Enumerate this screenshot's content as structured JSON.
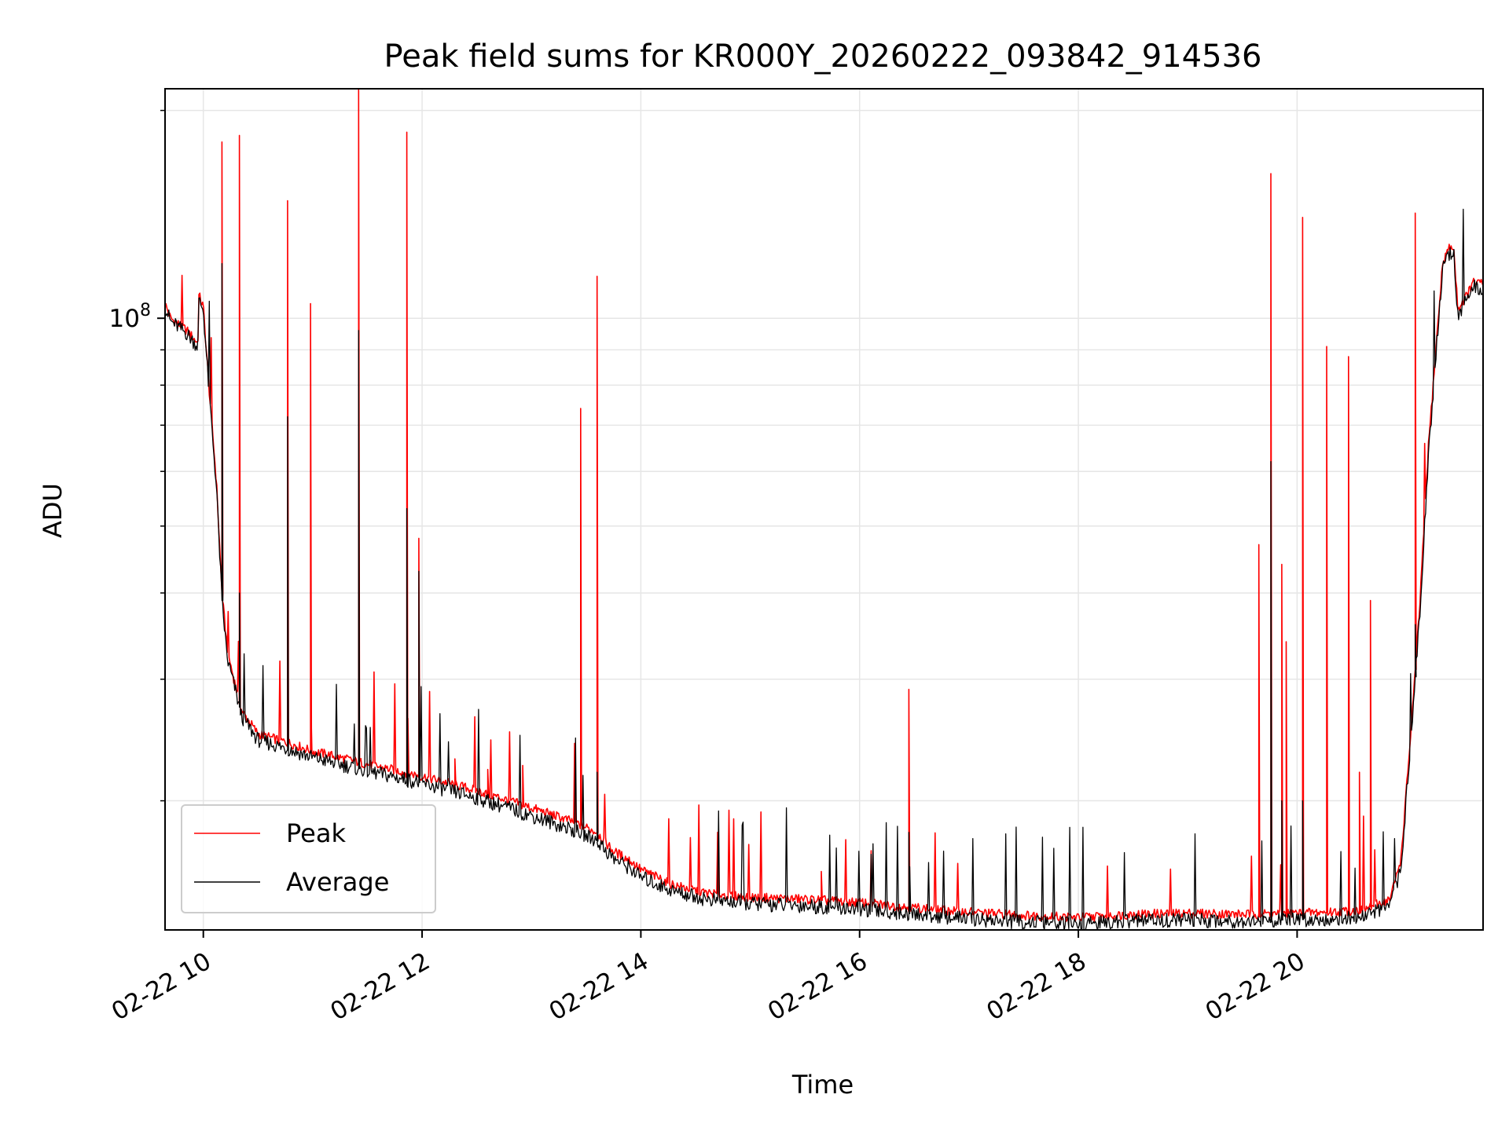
{
  "chart_data": {
    "type": "line",
    "title": "Peak field sums for KR000Y_20260222_093842_914536",
    "xlabel": "Time",
    "ylabel": "ADU",
    "x_unit": "hours",
    "xlim": [
      9.65,
      21.7
    ],
    "ylim": [
      13000000,
      215000000
    ],
    "yscale": "log",
    "x_ticks": [
      {
        "value": 10,
        "label": "02-22 10"
      },
      {
        "value": 12,
        "label": "02-22 12"
      },
      {
        "value": 14,
        "label": "02-22 14"
      },
      {
        "value": 16,
        "label": "02-22 16"
      },
      {
        "value": 18,
        "label": "02-22 18"
      },
      {
        "value": 20,
        "label": "02-22 20"
      }
    ],
    "y_major_ticks": [
      {
        "value": 100000000,
        "base": "10",
        "exp": "8"
      }
    ],
    "y_minor_ticks": [
      20000000,
      30000000,
      40000000,
      50000000,
      60000000,
      70000000,
      80000000,
      90000000,
      200000000
    ],
    "grid": true,
    "legend_position": "lower-left",
    "series": [
      {
        "name": "Peak",
        "color": "#ff0000",
        "baseline": [
          [
            9.65,
            105000000
          ],
          [
            9.7,
            100000000
          ],
          [
            9.85,
            96000000
          ],
          [
            9.95,
            92000000
          ],
          [
            9.96,
            108000000
          ],
          [
            10.0,
            104000000
          ],
          [
            10.05,
            80000000
          ],
          [
            10.12,
            58000000
          ],
          [
            10.17,
            40000000
          ],
          [
            10.22,
            33000000
          ],
          [
            10.28,
            30000000
          ],
          [
            10.35,
            27000000
          ],
          [
            10.5,
            25000000
          ],
          [
            10.8,
            24200000
          ],
          [
            11.0,
            23600000
          ],
          [
            11.3,
            23000000
          ],
          [
            11.6,
            22400000
          ],
          [
            11.9,
            21900000
          ],
          [
            12.2,
            21300000
          ],
          [
            12.5,
            20700000
          ],
          [
            12.8,
            20000000
          ],
          [
            13.1,
            19300000
          ],
          [
            13.4,
            18600000
          ],
          [
            13.6,
            18000000
          ],
          [
            13.75,
            16900000
          ],
          [
            13.9,
            16400000
          ],
          [
            14.0,
            15900000
          ],
          [
            14.3,
            15100000
          ],
          [
            14.6,
            14700000
          ],
          [
            15.0,
            14500000
          ],
          [
            15.5,
            14400000
          ],
          [
            16.0,
            14250000
          ],
          [
            16.5,
            14000000
          ],
          [
            17.0,
            13800000
          ],
          [
            17.5,
            13650000
          ],
          [
            18.0,
            13550000
          ],
          [
            18.5,
            13700000
          ],
          [
            19.0,
            13750000
          ],
          [
            19.5,
            13700000
          ],
          [
            20.0,
            13750000
          ],
          [
            20.3,
            13800000
          ],
          [
            20.6,
            13900000
          ],
          [
            20.85,
            14400000
          ],
          [
            20.95,
            16500000
          ],
          [
            21.03,
            24000000
          ],
          [
            21.12,
            38000000
          ],
          [
            21.2,
            65000000
          ],
          [
            21.28,
            95000000
          ],
          [
            21.33,
            120000000
          ],
          [
            21.38,
            126000000
          ],
          [
            21.43,
            127000000
          ],
          [
            21.47,
            103000000
          ],
          [
            21.55,
            108000000
          ],
          [
            21.62,
            113000000
          ],
          [
            21.7,
            112000000
          ]
        ],
        "spikes": [
          [
            10.17,
            180000000
          ],
          [
            10.33,
            184000000
          ],
          [
            10.77,
            148000000
          ],
          [
            10.98,
            105000000
          ],
          [
            11.42,
            215000000
          ],
          [
            11.86,
            186000000
          ],
          [
            11.97,
            48000000
          ],
          [
            12.3,
            23000000
          ],
          [
            12.6,
            22200000
          ],
          [
            12.92,
            22500000
          ],
          [
            13.45,
            74000000
          ],
          [
            13.6,
            115000000
          ],
          [
            15.65,
            15800000
          ],
          [
            16.45,
            29000000
          ],
          [
            19.65,
            47000000
          ],
          [
            19.76,
            162000000
          ],
          [
            19.86,
            44000000
          ],
          [
            19.9,
            34000000
          ],
          [
            20.05,
            140000000
          ],
          [
            20.27,
            91000000
          ],
          [
            20.47,
            88000000
          ],
          [
            20.57,
            22000000
          ],
          [
            20.67,
            39000000
          ],
          [
            21.08,
            142000000
          ]
        ]
      },
      {
        "name": "Average",
        "color": "#000000",
        "baseline": [
          [
            9.65,
            104000000
          ],
          [
            9.7,
            99000000
          ],
          [
            9.85,
            95000000
          ],
          [
            9.95,
            91000000
          ],
          [
            9.96,
            106000000
          ],
          [
            10.0,
            103000000
          ],
          [
            10.05,
            79000000
          ],
          [
            10.12,
            57000000
          ],
          [
            10.17,
            39000000
          ],
          [
            10.22,
            32000000
          ],
          [
            10.28,
            29500000
          ],
          [
            10.35,
            26500000
          ],
          [
            10.5,
            24500000
          ],
          [
            10.8,
            23700000
          ],
          [
            11.0,
            23100000
          ],
          [
            11.3,
            22500000
          ],
          [
            11.6,
            21900000
          ],
          [
            11.9,
            21400000
          ],
          [
            12.2,
            20800000
          ],
          [
            12.5,
            20200000
          ],
          [
            12.8,
            19500000
          ],
          [
            13.1,
            18800000
          ],
          [
            13.4,
            18100000
          ],
          [
            13.6,
            17500000
          ],
          [
            13.75,
            16500000
          ],
          [
            13.9,
            16000000
          ],
          [
            14.0,
            15500000
          ],
          [
            14.3,
            14800000
          ],
          [
            14.6,
            14400000
          ],
          [
            15.0,
            14200000
          ],
          [
            15.5,
            14100000
          ],
          [
            16.0,
            13950000
          ],
          [
            16.5,
            13700000
          ],
          [
            17.0,
            13500000
          ],
          [
            17.5,
            13350000
          ],
          [
            18.0,
            13250000
          ],
          [
            18.5,
            13400000
          ],
          [
            19.0,
            13450000
          ],
          [
            19.5,
            13400000
          ],
          [
            20.0,
            13450000
          ],
          [
            20.3,
            13500000
          ],
          [
            20.6,
            13600000
          ],
          [
            20.85,
            14100000
          ],
          [
            20.95,
            16000000
          ],
          [
            21.03,
            23500000
          ],
          [
            21.12,
            37000000
          ],
          [
            21.2,
            63000000
          ],
          [
            21.28,
            93000000
          ],
          [
            21.33,
            118000000
          ],
          [
            21.38,
            124000000
          ],
          [
            21.43,
            125000000
          ],
          [
            21.47,
            101000000
          ],
          [
            21.55,
            106000000
          ],
          [
            21.62,
            111000000
          ],
          [
            21.7,
            110000000
          ]
        ],
        "spikes": [
          [
            10.17,
            120000000
          ],
          [
            10.33,
            40000000
          ],
          [
            10.77,
            72000000
          ],
          [
            11.42,
            96000000
          ],
          [
            11.86,
            53000000
          ],
          [
            11.97,
            43000000
          ],
          [
            13.6,
            22000000
          ],
          [
            16.45,
            18000000
          ],
          [
            19.76,
            62000000
          ],
          [
            19.86,
            20000000
          ],
          [
            20.05,
            20000000
          ],
          [
            21.08,
            36000000
          ]
        ]
      }
    ]
  }
}
